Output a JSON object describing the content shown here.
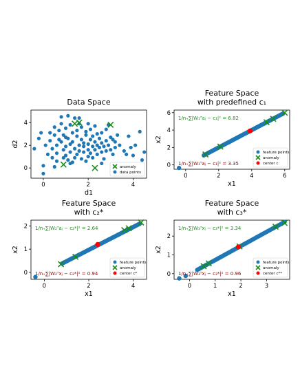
{
  "chart_data": [
    {
      "type": "scatter",
      "title_lines": [
        "Data Space"
      ],
      "xlabel": "d1",
      "ylabel": "d2",
      "xlim": [
        -0.55,
        4.6
      ],
      "ylim": [
        -0.9,
        5.1
      ],
      "xticks": [
        0,
        2,
        4
      ],
      "yticks": [
        0,
        2,
        4
      ],
      "legend_position": "lower-right",
      "legend": [
        {
          "label": "anomaly",
          "marker": "x",
          "color": "#1a8c1a"
        },
        {
          "label": "data points",
          "marker": "circle",
          "color": "#1f77b4"
        }
      ],
      "series": [
        {
          "name": "data points",
          "marker": "circle",
          "color": "#1f77b4",
          "points": [
            [
              -0.4,
              1.7
            ],
            [
              -0.2,
              2.6
            ],
            [
              -0.1,
              3.1
            ],
            [
              0,
              0.2
            ],
            [
              0.0,
              -0.5
            ],
            [
              0.1,
              2.0
            ],
            [
              0.2,
              1.2
            ],
            [
              0.3,
              3.1
            ],
            [
              0.3,
              2.4
            ],
            [
              0.4,
              1.7
            ],
            [
              0.4,
              0.9
            ],
            [
              0.5,
              3.6
            ],
            [
              0.5,
              2.9
            ],
            [
              0.6,
              2.0
            ],
            [
              0.6,
              1.3
            ],
            [
              0.6,
              0.6
            ],
            [
              0.7,
              3.3
            ],
            [
              0.7,
              2.5
            ],
            [
              0.8,
              4.5
            ],
            [
              0.8,
              3.9
            ],
            [
              0.8,
              2.3
            ],
            [
              0.9,
              1.6
            ],
            [
              0.9,
              0.9
            ],
            [
              0.9,
              2.9
            ],
            [
              1.0,
              3.5
            ],
            [
              1.0,
              1.9
            ],
            [
              1.0,
              1.1
            ],
            [
              1.1,
              4.6
            ],
            [
              1.1,
              2.6
            ],
            [
              1.1,
              0.7
            ],
            [
              1.2,
              3.8
            ],
            [
              1.2,
              2.1
            ],
            [
              1.2,
              1.4
            ],
            [
              1.3,
              3.1
            ],
            [
              1.3,
              2.3
            ],
            [
              1.3,
              0.5
            ],
            [
              1.4,
              4.4
            ],
            [
              1.4,
              1.7
            ],
            [
              1.4,
              0.9
            ],
            [
              1.5,
              2.8
            ],
            [
              1.5,
              3.3
            ],
            [
              1.5,
              1.2
            ],
            [
              1.6,
              2.0
            ],
            [
              1.6,
              3.9
            ],
            [
              1.6,
              1.5
            ],
            [
              1.7,
              2.5
            ],
            [
              1.7,
              0.8
            ],
            [
              1.7,
              3.6
            ],
            [
              1.8,
              1.9
            ],
            [
              1.8,
              2.2
            ],
            [
              1.8,
              1.4
            ],
            [
              1.9,
              2.9
            ],
            [
              1.9,
              0.6
            ],
            [
              1.9,
              3.2
            ],
            [
              2.0,
              2.1
            ],
            [
              2.0,
              1.6
            ],
            [
              2.0,
              1.0
            ],
            [
              2.1,
              2.5
            ],
            [
              2.1,
              3.4
            ],
            [
              2.1,
              1.3
            ],
            [
              2.2,
              1.9
            ],
            [
              2.2,
              2.8
            ],
            [
              2.2,
              0.9
            ],
            [
              2.3,
              2.3
            ],
            [
              2.3,
              1.6
            ],
            [
              2.3,
              3.7
            ],
            [
              2.4,
              2.0
            ],
            [
              2.4,
              1.2
            ],
            [
              2.4,
              3.0
            ],
            [
              2.5,
              1.8
            ],
            [
              2.5,
              2.6
            ],
            [
              2.6,
              1.4
            ],
            [
              2.6,
              2.2
            ],
            [
              2.6,
              3.1
            ],
            [
              2.7,
              1.9
            ],
            [
              2.7,
              0.8
            ],
            [
              2.8,
              2.4
            ],
            [
              2.8,
              1.5
            ],
            [
              2.8,
              3.4
            ],
            [
              2.9,
              2.0
            ],
            [
              3.0,
              1.6
            ],
            [
              3.0,
              2.7
            ],
            [
              3.1,
              1.2
            ],
            [
              3.2,
              2.3
            ],
            [
              3.2,
              1.8
            ],
            [
              3.4,
              2.0
            ],
            [
              3.5,
              0.3
            ],
            [
              3.6,
              1.5
            ],
            [
              3.7,
              1.2
            ],
            [
              3.8,
              2.8
            ],
            [
              3.9,
              1.8
            ],
            [
              4.0,
              1.1
            ],
            [
              4.1,
              2.0
            ],
            [
              4.4,
              0.7
            ],
            [
              4.5,
              1.4
            ],
            [
              4.3,
              3.2
            ],
            [
              3.3,
              2.9
            ],
            [
              2.0,
              3.9
            ],
            [
              1.0,
              2.7
            ],
            [
              1.2,
              0.4
            ],
            [
              2.6,
              0.4
            ],
            [
              0.5,
              0.1
            ],
            [
              1.6,
              4.4
            ],
            [
              2.9,
              3.8
            ],
            [
              3.1,
              2.5
            ]
          ]
        },
        {
          "name": "anomaly",
          "marker": "x",
          "color": "#1a8c1a",
          "points": [
            [
              0.9,
              0.3
            ],
            [
              1.4,
              3.9
            ],
            [
              1.6,
              4.0
            ],
            [
              2.3,
              0.0
            ],
            [
              3.0,
              3.8
            ]
          ]
        }
      ]
    },
    {
      "type": "scatter",
      "title_lines": [
        "Feature Space",
        "with predefined c₁"
      ],
      "xlabel": "x1",
      "ylabel": "x2",
      "xlim": [
        -0.7,
        6.3
      ],
      "ylim": [
        -0.5,
        6.3
      ],
      "xticks": [
        0,
        2,
        4,
        6
      ],
      "yticks": [
        0,
        2,
        4,
        6
      ],
      "legend_position": "lower-right",
      "legend": [
        {
          "label": "feature points",
          "marker": "circle",
          "color": "#1f77b4"
        },
        {
          "label": "anomaly",
          "marker": "x",
          "color": "#1a8c1a"
        },
        {
          "label": "center c",
          "marker": "circle",
          "color": "#ff0000"
        }
      ],
      "annotations": [
        {
          "text": "1/n₊∑|W₁ᵀaⱼ − c₁|² = 6.82",
          "color": "#1a8c1a",
          "anchor": "top-left"
        },
        {
          "text": "1/n₊∑|W₁ᵀaⱼ − c₁|² = 3.35",
          "color": "#8b0000",
          "anchor": "bottom-left"
        }
      ],
      "series": [
        {
          "name": "feature points",
          "marker": "circle",
          "color": "#1f77b4",
          "line_range": [
            1.1,
            5.9
          ],
          "outliers": [
            [
              -0.4,
              -0.35
            ]
          ]
        },
        {
          "name": "anomaly",
          "marker": "x",
          "color": "#1a8c1a",
          "points": [
            [
              1.2,
              1.2
            ],
            [
              2.1,
              2.1
            ],
            [
              4.9,
              4.9
            ],
            [
              5.3,
              5.3
            ],
            [
              6.0,
              6.0
            ]
          ]
        },
        {
          "name": "center c",
          "marker": "circle",
          "color": "#ff0000",
          "points": [
            [
              3.9,
              3.9
            ]
          ]
        }
      ]
    },
    {
      "type": "scatter",
      "title_lines": [
        "Feature Space",
        "with c₂*"
      ],
      "xlabel": "x1",
      "ylabel": "x2",
      "xlim": [
        -0.6,
        4.6
      ],
      "ylim": [
        -0.3,
        2.25
      ],
      "xticks": [
        0,
        2,
        4
      ],
      "yticks": [
        0,
        1,
        2
      ],
      "legend_position": "lower-right",
      "legend": [
        {
          "label": "feature points",
          "marker": "circle",
          "color": "#1f77b4"
        },
        {
          "label": "anomaly",
          "marker": "x",
          "color": "#1a8c1a"
        },
        {
          "label": "center c*",
          "marker": "circle",
          "color": "#ff0000"
        }
      ],
      "annotations": [
        {
          "text": "1/n₊∑|W₂ᵀaⱼ − c₂*|² = 2.64",
          "color": "#1a8c1a",
          "anchor": "top-left"
        },
        {
          "text": "1/n₊∑|W₂ᵀxⱼ − c₂*|² = 0.94",
          "color": "#8b0000",
          "anchor": "bottom-left"
        }
      ],
      "series": [
        {
          "name": "feature points",
          "marker": "circle",
          "color": "#1f77b4",
          "line_range": [
            0.8,
            4.3
          ],
          "line_y": [
            0.38,
            2.1
          ],
          "outliers": [
            [
              -0.4,
              -0.2
            ]
          ]
        },
        {
          "name": "anomaly",
          "marker": "x",
          "color": "#1a8c1a",
          "points": [
            [
              0.75,
              0.35
            ],
            [
              1.4,
              0.67
            ],
            [
              3.6,
              1.82
            ],
            [
              3.8,
              1.9
            ],
            [
              4.35,
              2.15
            ]
          ]
        },
        {
          "name": "center c*",
          "marker": "circle",
          "color": "#ff0000",
          "points": [
            [
              2.4,
              1.2
            ]
          ]
        }
      ]
    },
    {
      "type": "scatter",
      "title_lines": [
        "Feature Space",
        "with c₃*"
      ],
      "xlabel": "x1",
      "ylabel": "x2",
      "xlim": [
        -0.6,
        3.9
      ],
      "ylim": [
        -0.3,
        2.85
      ],
      "xticks": [
        0,
        1,
        2,
        3
      ],
      "yticks": [
        0,
        1,
        2
      ],
      "legend_position": "lower-right",
      "legend": [
        {
          "label": "feature points",
          "marker": "circle",
          "color": "#1f77b4"
        },
        {
          "label": "anomaly",
          "marker": "x",
          "color": "#1a8c1a"
        },
        {
          "label": "center c**",
          "marker": "circle",
          "color": "#ff0000"
        }
      ],
      "annotations": [
        {
          "text": "1/n₊∑|W₃ᵀxⱼ − c₃*|² = 3.34",
          "color": "#1a8c1a",
          "anchor": "top-left"
        },
        {
          "text": "1/n₊∑|W₃ᵀxⱼ − c₃*|² = 0.96",
          "color": "#8b0000",
          "anchor": "bottom-left"
        }
      ],
      "series": [
        {
          "name": "feature points",
          "marker": "circle",
          "color": "#1f77b4",
          "line_range": [
            0.3,
            3.7
          ],
          "line_y": [
            0.2,
            2.75
          ],
          "outliers": [
            [
              -0.4,
              -0.25
            ],
            [
              -0.15,
              -0.12
            ]
          ]
        },
        {
          "name": "anomaly",
          "marker": "x",
          "color": "#1a8c1a",
          "points": [
            [
              0.55,
              0.4
            ],
            [
              0.75,
              0.55
            ],
            [
              1.95,
              1.45
            ],
            [
              3.35,
              2.5
            ],
            [
              3.7,
              2.7
            ]
          ]
        },
        {
          "name": "center c**",
          "marker": "circle",
          "color": "#ff0000",
          "points": [
            [
              1.9,
              1.42
            ]
          ]
        }
      ]
    }
  ]
}
